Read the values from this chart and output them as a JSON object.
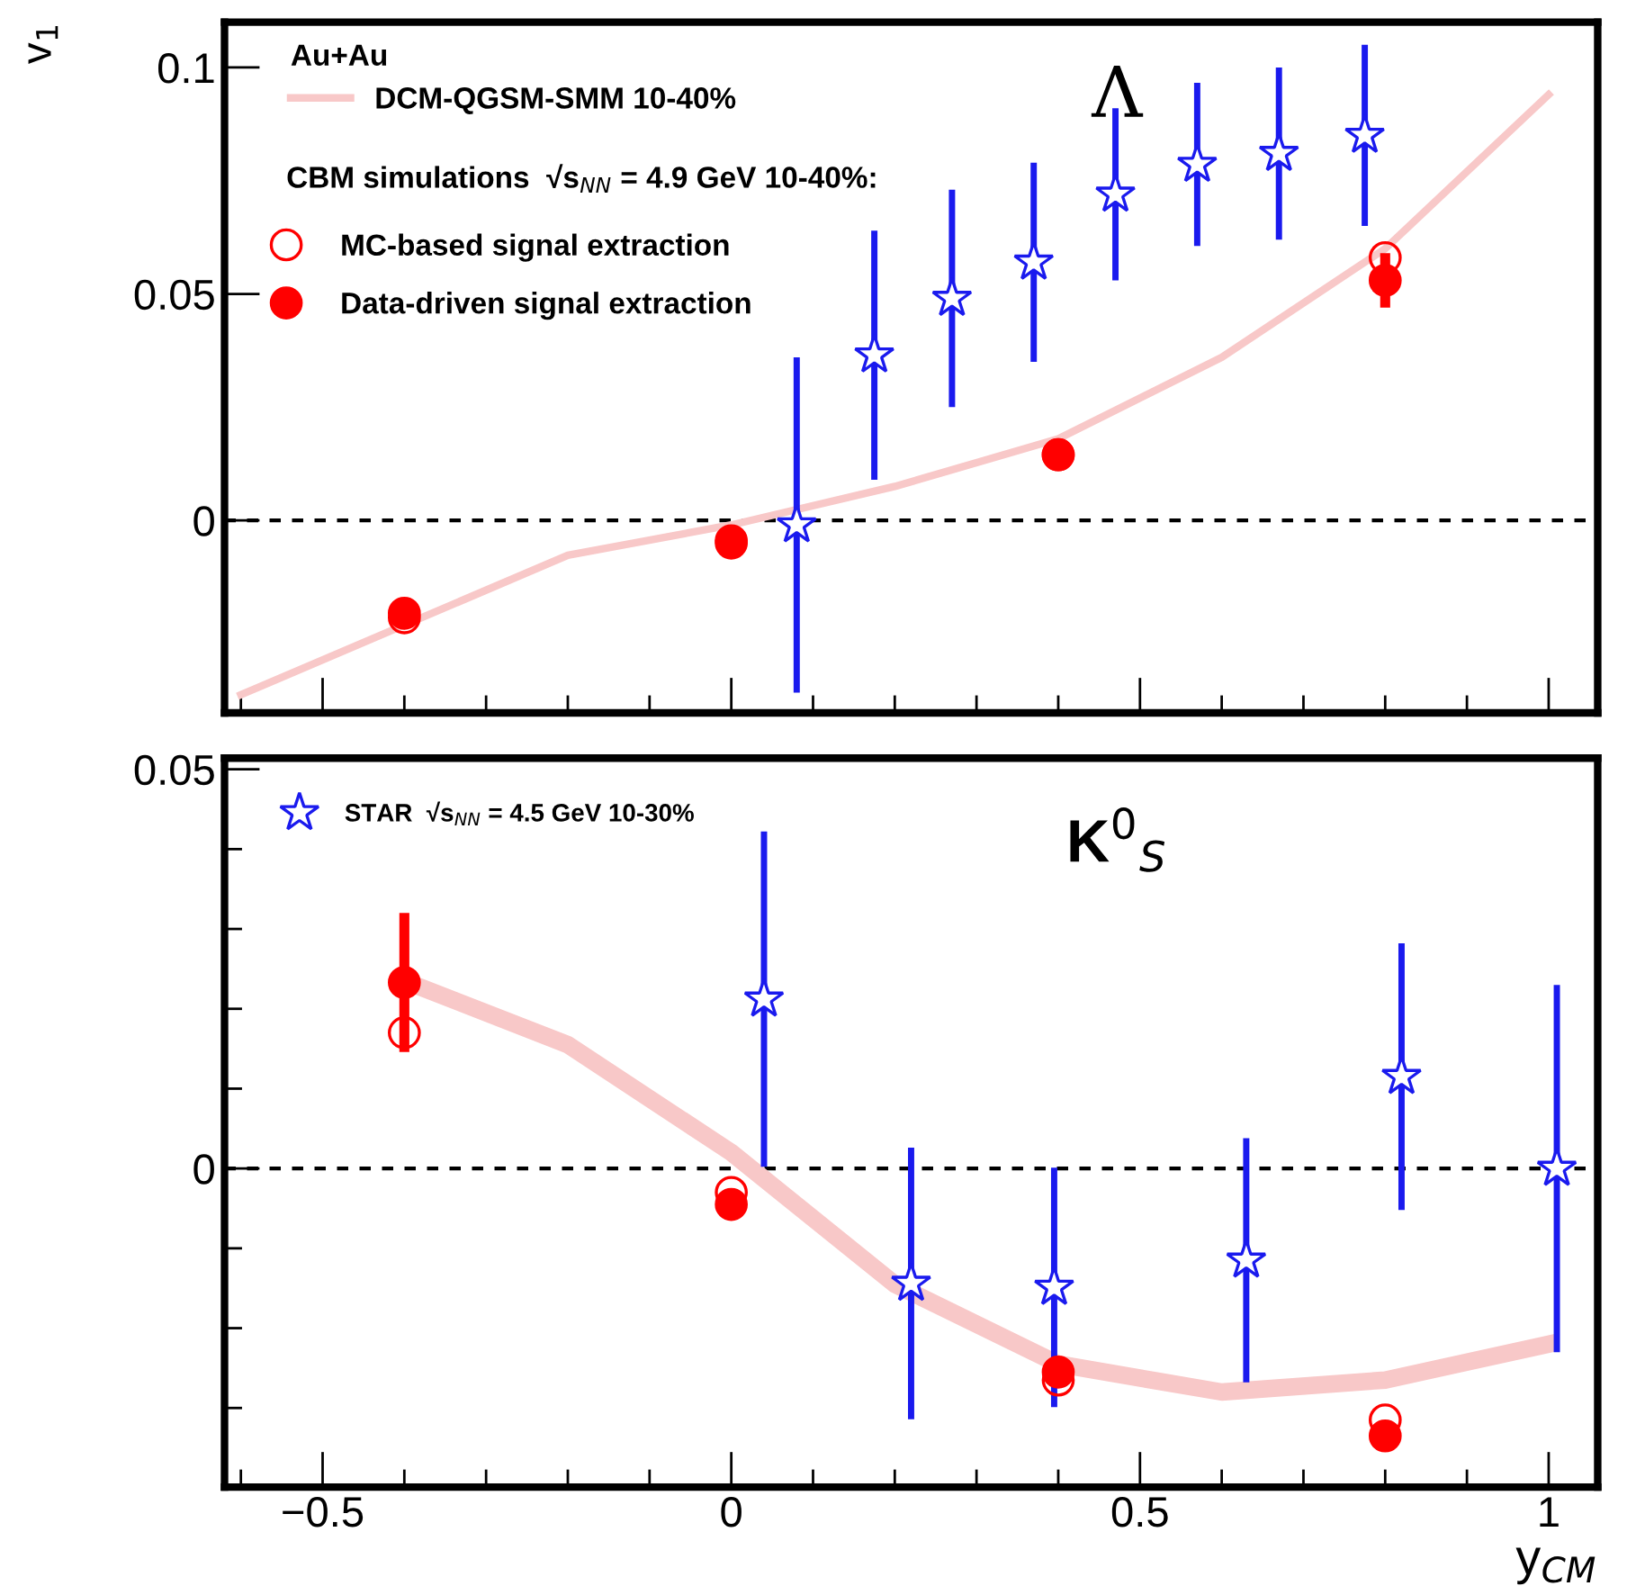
{
  "chart_data": [
    {
      "type": "scatter",
      "title": "Λ",
      "ylabel": "v$_{1}$",
      "legend_title": "Au+Au",
      "legend": "top left",
      "tick_labels": "y",
      "xlim": [
        -0.62,
        1.06
      ],
      "ylim": [
        -0.0425,
        0.11
      ],
      "xticks": [
        {
          "value": -0.5,
          "label": null
        },
        {
          "value": 0,
          "label": null
        },
        {
          "value": 0.5,
          "label": null
        },
        {
          "value": 1,
          "label": null
        }
      ],
      "yticks": [
        0,
        0.05,
        0.1
      ],
      "annotations": [
        "CBM simulations  √s$_{NN}$ = 4.9 GeV 10-40%:"
      ],
      "ref_lines": [
        {
          "axis": "y",
          "value": 0,
          "color": "#000000",
          "line_style": "dashed"
        }
      ],
      "series": [
        {
          "name": "DCM-QGSM-SMM 10-40%",
          "type": "line",
          "color": "#f8c8c8",
          "marker": "none",
          "x": [
            -0.6,
            -0.2,
            0,
            0.2,
            0.4,
            0.6,
            0.8,
            1.0
          ],
          "values": [
            -0.0385,
            -0.0077,
            -0.001,
            0.0075,
            0.018,
            0.036,
            0.06,
            0.094
          ]
        },
        {
          "color": "#1a1aee",
          "marker": "star",
          "x": [
            0.08,
            0.175,
            0.27,
            0.37,
            0.47,
            0.57,
            0.67,
            0.775
          ],
          "values": [
            -0.001,
            0.0365,
            0.049,
            0.057,
            0.072,
            0.0786,
            0.081,
            0.085
          ],
          "errors": [
            0.037,
            0.0275,
            0.024,
            0.022,
            0.019,
            0.018,
            0.019,
            0.02
          ]
        },
        {
          "name": "MC-based signal extraction",
          "color": "#ff0000",
          "marker": "circle",
          "x": [
            -0.4,
            0,
            0.4,
            0.8
          ],
          "values": [
            -0.0215,
            -0.005,
            0.0145,
            0.058
          ]
        },
        {
          "name": "Data-driven signal extraction",
          "color": "#ff0000",
          "marker": "circle",
          "x": [
            -0.4,
            0,
            0.4,
            0.8
          ],
          "values": [
            -0.0205,
            -0.0045,
            0.0145,
            0.053
          ],
          "errors": [
            null,
            null,
            null,
            0.006
          ]
        }
      ]
    },
    {
      "type": "scatter",
      "title": "K$^{0}$$_{S}$",
      "xlabel": "y$_{CM}$",
      "legend": "top left",
      "xlim": [
        -0.62,
        1.06
      ],
      "ylim": [
        -0.0399,
        0.0514
      ],
      "xticks": [
        {
          "value": -0.5,
          "label": "−0.5"
        },
        0,
        0.5,
        1
      ],
      "yticks": [
        0,
        0.05
      ],
      "ref_lines": [
        {
          "axis": "y",
          "value": 0,
          "color": "#000000",
          "line_style": "dashed"
        }
      ],
      "series": [
        {
          "type": "line",
          "color": "#f8c8c8",
          "marker": "none",
          "x": [
            -0.4,
            -0.2,
            0,
            0.2,
            0.4,
            0.6,
            0.8,
            1.0
          ],
          "values": [
            0.0235,
            0.0155,
            0.002,
            -0.0145,
            -0.0245,
            -0.028,
            -0.0265,
            -0.022
          ]
        },
        {
          "name": "STAR  √s$_{NN}$ = 4.5 GeV 10-30%",
          "color": "#1a1aee",
          "marker": "star",
          "x": [
            0.04,
            0.22,
            0.395,
            0.63,
            0.82,
            1.01
          ],
          "values": [
            0.0212,
            -0.0144,
            -0.0149,
            -0.0115,
            0.0115,
            0.0
          ],
          "errors": [
            0.021,
            0.017,
            0.015,
            0.0153,
            0.0167,
            0.023
          ]
        },
        {
          "color": "#ff0000",
          "marker": "circle",
          "x": [
            -0.4,
            0,
            0.4,
            0.8
          ],
          "values": [
            0.017,
            -0.003,
            -0.0265,
            -0.0315
          ]
        },
        {
          "color": "#ff0000",
          "marker": "circle",
          "x": [
            -0.4,
            0,
            0.4,
            0.8
          ],
          "values": [
            0.0233,
            -0.0045,
            -0.0255,
            -0.0335
          ],
          "errors": [
            0.0087,
            null,
            null,
            null
          ]
        }
      ]
    }
  ]
}
